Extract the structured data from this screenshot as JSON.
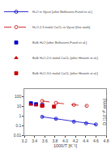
{
  "chart_data": {
    "type": "line",
    "xlabel": "1000/T [K⁻¹]",
    "ylabel": "D [10⁻¹⁰ m²/s]",
    "log": "y",
    "grid": false,
    "legend": "top",
    "xlim": [
      3.2,
      4.8
    ],
    "xticks": [
      3.2,
      3.4,
      3.6,
      3.8,
      {
        "value": 4.0,
        "label": "4.0"
      },
      4.2,
      4.4,
      4.6,
      4.8
    ],
    "ylim": [
      0.01,
      600
    ],
    "yticks": [
      0.01,
      0.1,
      1,
      10,
      100
    ],
    "series": [
      {
        "name": "H₂O in Vycor [after Bellissent-Funel et al.]",
        "type": "line",
        "color": "#0000cc",
        "marker": "circle_open",
        "line_style": "solid",
        "x": [
          3.55,
          3.82,
          4.17,
          4.41,
          4.6
        ],
        "values": [
          0.8,
          0.5,
          0.25,
          0.17,
          0.13
        ],
        "yerr": [
          0.09,
          0.05,
          0.025,
          0.018,
          0.015
        ]
      },
      {
        "name": "H₂O-2.3 molal CaCl₂ in Vycor [this work]",
        "type": "line",
        "color": "#cc0000",
        "marker": "circle_open",
        "line_style": "dashed",
        "x": [
          3.55,
          3.82,
          4.17,
          4.42
        ],
        "values": [
          35,
          22,
          14,
          11
        ]
      },
      {
        "name": "Bulk H₂O [after Bellissent-Funel et al.]",
        "type": "scatter",
        "color": "#0000cc",
        "marker": "square",
        "x": [
          3.33,
          3.43,
          3.55
        ],
        "values": [
          20,
          16,
          13
        ]
      },
      {
        "name": "Bulk H₂O-2.0 molal CaCl₂ [after Hewish et al.]",
        "type": "scatter",
        "color": "#cc0000",
        "marker": "triangle",
        "x": [
          3.33,
          3.43,
          3.55
        ],
        "values": [
          15,
          13,
          11
        ]
      },
      {
        "name": "Bulk H₂O-3.0 molal CaCl₂ [after Hewish et al.]",
        "type": "scatter",
        "color": "#cc0000",
        "marker": "square",
        "x": [
          3.55,
          3.78
        ],
        "values": [
          11,
          9
        ]
      }
    ]
  }
}
